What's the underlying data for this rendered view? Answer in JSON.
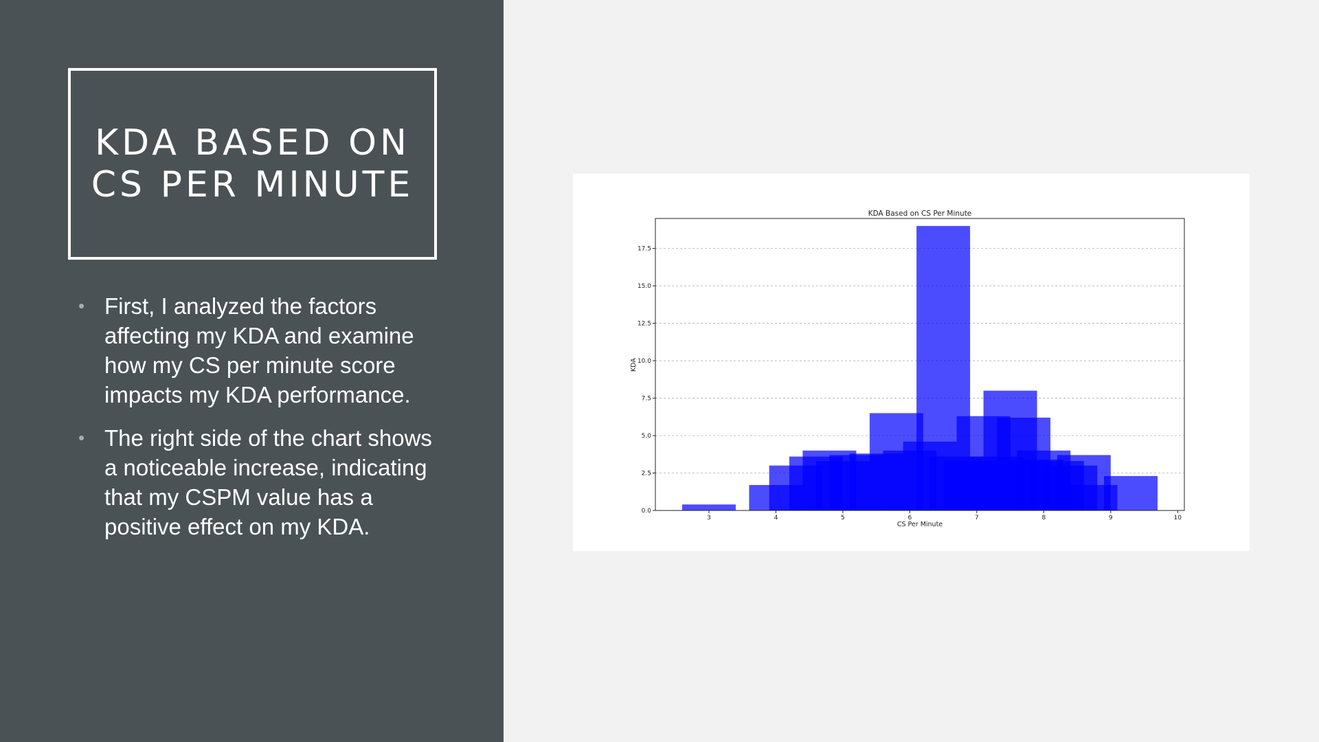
{
  "slide": {
    "title_line1": "KDA BASED ON",
    "title_line2": "CS PER MINUTE",
    "bullets": [
      "First, I analyzed the factors affecting my KDA and examine how my CS per minute score impacts my KDA performance.",
      "The right side of the chart shows a noticeable increase, indicating that my CSPM value has a positive effect on my KDA."
    ],
    "bullet_symbol": "•"
  },
  "colors": {
    "panel": "#4a5256",
    "background": "#f2f2f2",
    "bar": "#0000ff",
    "bar_opacity": 0.7
  },
  "chart_data": {
    "type": "bar",
    "title": "KDA Based on CS Per Minute",
    "xlabel": "CS Per Minute",
    "ylabel": "KDA",
    "xlim": [
      2.2,
      10.1
    ],
    "ylim": [
      0,
      19.5
    ],
    "xticks": [
      3,
      4,
      5,
      6,
      7,
      8,
      9,
      10
    ],
    "yticks": [
      0.0,
      2.5,
      5.0,
      7.5,
      10.0,
      12.5,
      15.0,
      17.5
    ],
    "ytick_labels": [
      "0.0",
      "2.5",
      "5.0",
      "7.5",
      "10.0",
      "12.5",
      "15.0",
      "17.5"
    ],
    "grid": "y dashed",
    "bars": [
      {
        "x": 3.0,
        "width": 0.8,
        "kda": 0.4
      },
      {
        "x": 4.0,
        "width": 0.8,
        "kda": 1.7
      },
      {
        "x": 4.3,
        "width": 0.8,
        "kda": 3.0
      },
      {
        "x": 4.6,
        "width": 0.8,
        "kda": 3.6
      },
      {
        "x": 4.8,
        "width": 0.8,
        "kda": 4.0
      },
      {
        "x": 5.0,
        "width": 0.8,
        "kda": 3.3
      },
      {
        "x": 5.2,
        "width": 0.8,
        "kda": 3.7
      },
      {
        "x": 5.5,
        "width": 0.8,
        "kda": 3.8
      },
      {
        "x": 5.8,
        "width": 0.8,
        "kda": 6.5
      },
      {
        "x": 6.0,
        "width": 0.8,
        "kda": 4.0
      },
      {
        "x": 6.3,
        "width": 0.8,
        "kda": 4.6
      },
      {
        "x": 6.5,
        "width": 0.8,
        "kda": 19.0
      },
      {
        "x": 6.7,
        "width": 0.8,
        "kda": 3.6
      },
      {
        "x": 6.9,
        "width": 0.8,
        "kda": 3.3
      },
      {
        "x": 7.1,
        "width": 0.8,
        "kda": 6.3
      },
      {
        "x": 7.3,
        "width": 0.8,
        "kda": 3.6
      },
      {
        "x": 7.5,
        "width": 0.8,
        "kda": 8.0
      },
      {
        "x": 7.7,
        "width": 0.8,
        "kda": 6.2
      },
      {
        "x": 7.9,
        "width": 0.8,
        "kda": 3.4
      },
      {
        "x": 8.0,
        "width": 0.8,
        "kda": 4.0
      },
      {
        "x": 8.2,
        "width": 0.8,
        "kda": 3.3
      },
      {
        "x": 8.4,
        "width": 0.8,
        "kda": 3.0
      },
      {
        "x": 8.6,
        "width": 0.8,
        "kda": 3.7
      },
      {
        "x": 8.7,
        "width": 0.8,
        "kda": 1.7
      },
      {
        "x": 9.3,
        "width": 0.8,
        "kda": 2.3
      }
    ]
  }
}
